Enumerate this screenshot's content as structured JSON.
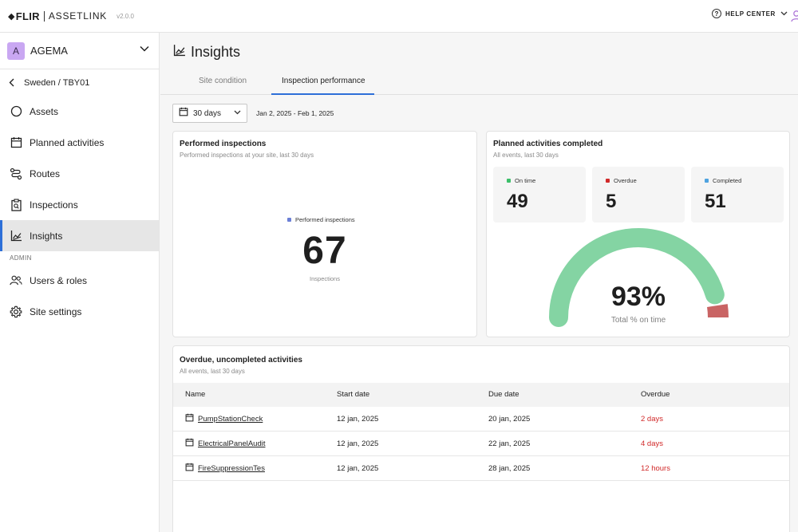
{
  "app": {
    "brand_primary": "FLIR",
    "brand_secondary": "ASSETLINK",
    "version": "v2.0.0",
    "help_label": "HELP CENTER"
  },
  "sidebar": {
    "org_initial": "A",
    "org_name": "AGEMA",
    "site_path": "Sweden / TBY01",
    "items": [
      {
        "label": "Assets",
        "icon": "circle-icon"
      },
      {
        "label": "Planned activities",
        "icon": "calendar-icon"
      },
      {
        "label": "Routes",
        "icon": "routes-icon"
      },
      {
        "label": "Inspections",
        "icon": "clipboard-icon"
      },
      {
        "label": "Insights",
        "icon": "chart-icon",
        "active": true
      }
    ],
    "admin_label": "ADMIN",
    "admin_items": [
      {
        "label": "Users & roles",
        "icon": "users-icon"
      },
      {
        "label": "Site settings",
        "icon": "gear-icon"
      }
    ]
  },
  "header": {
    "title": "Insights",
    "tabs": [
      {
        "label": "Site condition",
        "active": false
      },
      {
        "label": "Inspection performance",
        "active": true
      }
    ]
  },
  "filters": {
    "range_label": "30 days",
    "date_range": "Jan 2, 2025 - Feb 1, 2025"
  },
  "performed": {
    "title": "Performed inspections",
    "subtitle": "Performed inspections at your site, last 30 days",
    "legend": "Performed inspections",
    "value": "67",
    "unit": "Inspections",
    "color": "#6b7fd6"
  },
  "planned": {
    "title": "Planned activities completed",
    "subtitle": "All events, last 30 days",
    "stats": [
      {
        "label": "On time",
        "value": "49",
        "color": "#3cbf6a"
      },
      {
        "label": "Overdue",
        "value": "5",
        "color": "#d12a2a"
      },
      {
        "label": "Completed",
        "value": "51",
        "color": "#4fa3e0"
      }
    ],
    "gauge_percent": "93%",
    "gauge_fraction": 0.93,
    "gauge_label": "Total % on time",
    "gauge_colors": {
      "on_time": "#84d4a3",
      "overdue": "#c96464"
    }
  },
  "overdue": {
    "title": "Overdue, uncompleted activities",
    "subtitle": "All events, last 30 days",
    "columns": [
      "Name",
      "Start date",
      "Due date",
      "Overdue"
    ],
    "rows": [
      {
        "name": "PumpStationCheck",
        "start": "12 jan, 2025",
        "due": "20 jan, 2025",
        "overdue": "2 days"
      },
      {
        "name": "ElectricalPanelAudit",
        "start": "12 jan, 2025",
        "due": "22 jan, 2025",
        "overdue": "4 days"
      },
      {
        "name": "FireSuppressionTes",
        "start": "12 jan, 2025",
        "due": "28 jan, 2025",
        "overdue": "12 hours"
      }
    ]
  }
}
